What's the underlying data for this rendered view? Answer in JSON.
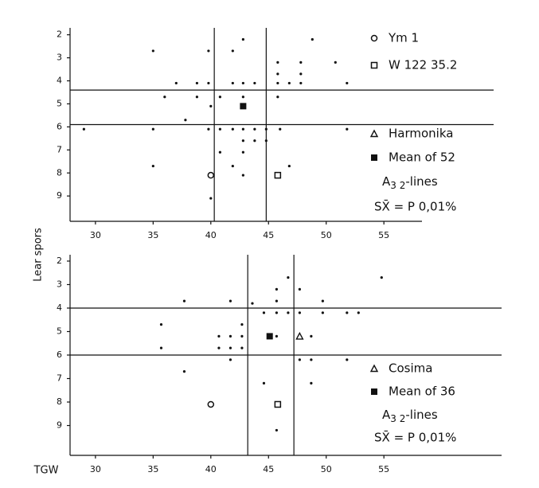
{
  "chart_data": [
    {
      "type": "scatter",
      "y_label": "Lear spors",
      "xlim": [
        27.8,
        58.3
      ],
      "ylim": [
        10.1,
        1.7
      ],
      "xticks": [
        30,
        35,
        40,
        45,
        50,
        55
      ],
      "yticks": [
        2,
        3,
        4,
        5,
        6,
        7,
        8,
        9
      ],
      "vlines": [
        40.3,
        44.8
      ],
      "hlines": [
        4.4,
        5.9
      ],
      "series": [
        {
          "marker": "dot",
          "x": [
            29,
            35,
            35,
            35,
            36,
            37,
            37.8,
            38.8,
            38.8,
            39.8,
            39.8,
            40,
            39.8,
            40,
            40.8,
            40.8,
            40.8,
            41.9,
            41.9,
            41.9,
            41.9,
            42.8,
            42.8,
            42.8,
            42.8,
            42.8,
            42.8,
            42.8,
            43.8,
            43.8,
            43.8,
            44.8,
            44.8,
            45.8,
            45.8,
            45.8,
            45.8,
            46,
            46.8,
            46.8,
            47.8,
            47.8,
            47.8,
            48.8,
            50.8,
            51.8,
            51.8
          ],
          "values": [
            6.1,
            2.7,
            6.1,
            7.7,
            4.7,
            4.1,
            5.7,
            4.1,
            4.7,
            2.7,
            4.1,
            5.1,
            6.1,
            9.1,
            4.7,
            6.1,
            7.1,
            2.7,
            4.1,
            6.1,
            7.7,
            2.2,
            4.1,
            4.7,
            6.1,
            6.6,
            7.1,
            8.1,
            4.1,
            6.1,
            6.6,
            6.1,
            6.6,
            3.2,
            3.7,
            4.1,
            4.7,
            6.1,
            4.1,
            7.7,
            3.2,
            3.7,
            4.1,
            2.2,
            3.2,
            4.1,
            6.1
          ]
        },
        {
          "name": "Ym 1",
          "marker": "circle",
          "x": [
            40
          ],
          "values": [
            8.1
          ]
        },
        {
          "name": "W 122 35.2",
          "marker": "square",
          "x": [
            45.8
          ],
          "values": [
            8.1
          ]
        },
        {
          "name": "Harmonika",
          "marker": "triangle",
          "x": [],
          "values": []
        },
        {
          "name": "Mean of 52",
          "marker": "filled-square",
          "x": [
            42.8
          ],
          "values": [
            5.1
          ]
        }
      ],
      "note": {
        "a": "A",
        "sub": "3 2",
        "rest": "-lines",
        "sx": "SX̄ = P 0,01%"
      }
    },
    {
      "type": "scatter",
      "x_label": "TGW",
      "xlim": [
        27.8,
        65.2
      ],
      "ylim": [
        10.27,
        1.73
      ],
      "xticks": [
        30,
        35,
        40,
        45,
        50,
        55
      ],
      "yticks": [
        2,
        3,
        4,
        5,
        6,
        7,
        8,
        9
      ],
      "vlines": [
        43.2,
        47.2
      ],
      "hlines": [
        4.0,
        6.0
      ],
      "series": [
        {
          "marker": "dot",
          "x": [
            35.7,
            35.7,
            37.7,
            37.7,
            40.7,
            40.7,
            41.7,
            41.7,
            41.7,
            41.7,
            42.7,
            42.7,
            42.7,
            43.6,
            44.6,
            44.6,
            45.7,
            45.7,
            45.7,
            45.7,
            45.7,
            46.7,
            46.7,
            47.7,
            47.7,
            47.7,
            48.7,
            48.7,
            48.7,
            49.7,
            49.7,
            51.8,
            51.8,
            52.8,
            54.8
          ],
          "values": [
            4.7,
            5.7,
            3.7,
            6.7,
            5.2,
            5.7,
            3.7,
            5.2,
            5.7,
            6.2,
            4.7,
            5.2,
            5.7,
            3.8,
            4.2,
            7.2,
            4.2,
            3.2,
            3.7,
            5.2,
            9.2,
            2.7,
            4.2,
            3.2,
            4.2,
            6.2,
            5.2,
            6.2,
            7.2,
            3.7,
            4.2,
            4.2,
            6.2,
            4.2,
            2.7
          ]
        },
        {
          "marker": "circle",
          "x": [
            40
          ],
          "values": [
            8.1
          ]
        },
        {
          "marker": "square",
          "x": [
            45.8
          ],
          "values": [
            8.1
          ]
        },
        {
          "name": "Cosima",
          "marker": "triangle",
          "x": [
            47.7
          ],
          "values": [
            5.2
          ]
        },
        {
          "name": "Mean of 36",
          "marker": "filled-square",
          "x": [
            45.1
          ],
          "values": [
            5.2
          ]
        }
      ],
      "note": {
        "a": "A",
        "sub": "3 2",
        "rest": "-lines",
        "sx": "SX̄ = P 0,01%"
      }
    }
  ]
}
